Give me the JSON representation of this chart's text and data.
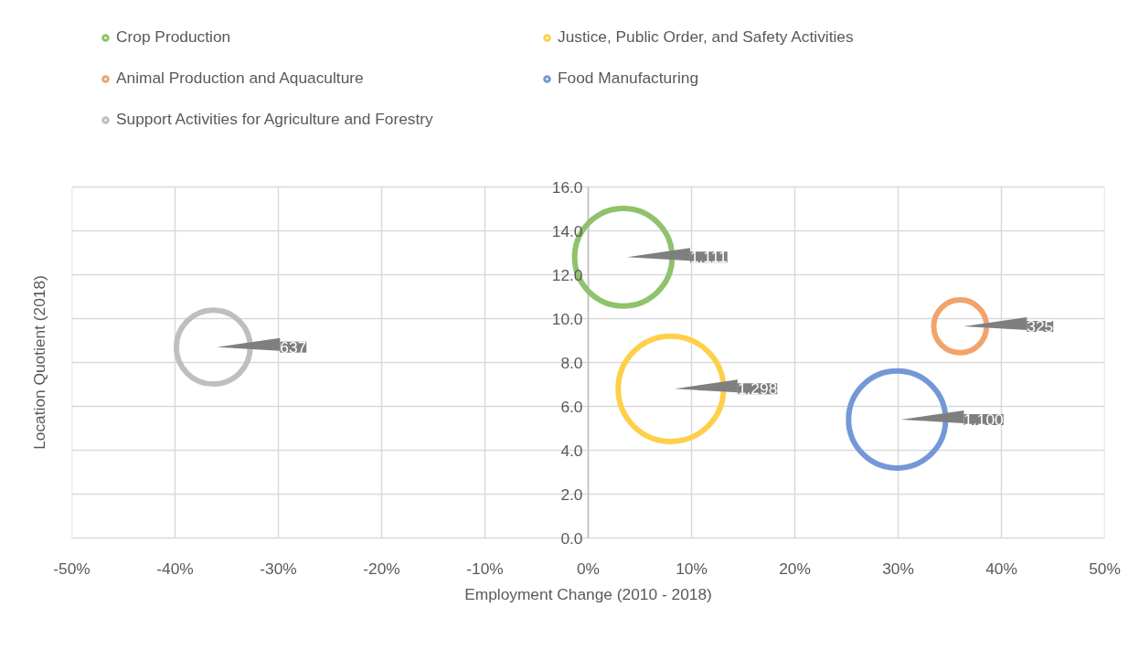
{
  "chart_data": {
    "type": "bubble",
    "xlabel": "Employment Change (2010 - 2018)",
    "ylabel": "Location Quotient (2018)",
    "xlim": [
      -50,
      50
    ],
    "xticks": [
      {
        "value": -50,
        "label": "-50%"
      },
      {
        "value": -40,
        "label": "-40%"
      },
      {
        "value": -30,
        "label": "-30%"
      },
      {
        "value": -20,
        "label": "-20%"
      },
      {
        "value": -10,
        "label": "-10%"
      },
      {
        "value": 0,
        "label": "0%"
      },
      {
        "value": 10,
        "label": "10%"
      },
      {
        "value": 20,
        "label": "20%"
      },
      {
        "value": 30,
        "label": "30%"
      },
      {
        "value": 40,
        "label": "40%"
      },
      {
        "value": 50,
        "label": "50%"
      }
    ],
    "ylim": [
      0,
      16
    ],
    "yticks": [
      {
        "value": 0,
        "label": "0.0"
      },
      {
        "value": 2,
        "label": "2.0"
      },
      {
        "value": 4,
        "label": "4.0"
      },
      {
        "value": 6,
        "label": "6.0"
      },
      {
        "value": 8,
        "label": "8.0"
      },
      {
        "value": 10,
        "label": "10.0"
      },
      {
        "value": 12,
        "label": "12.0"
      },
      {
        "value": 14,
        "label": "14.0"
      },
      {
        "value": 16,
        "label": "16.0"
      }
    ],
    "grid": true,
    "legend": "top",
    "marker": "circle",
    "series": [
      {
        "name": "Crop Production",
        "color": "#8fc26c",
        "x": [
          3.4
        ],
        "values": [
          12.8
        ],
        "sizes": [
          1111
        ],
        "value_labels": [
          "1,111"
        ]
      },
      {
        "name": "Animal Production and Aquaculture",
        "color": "#f0a46c",
        "x": [
          36.0
        ],
        "values": [
          9.65
        ],
        "sizes": [
          325
        ],
        "value_labels": [
          "325"
        ]
      },
      {
        "name": "Support Activities for Agriculture and Forestry",
        "color": "#bfbfbf",
        "x": [
          -36.3
        ],
        "values": [
          8.7
        ],
        "sizes": [
          637
        ],
        "value_labels": [
          "637"
        ]
      },
      {
        "name": "Justice, Public Order, and Safety Activities",
        "color": "#fed04a",
        "x": [
          8.0
        ],
        "values": [
          6.8
        ],
        "sizes": [
          1298
        ],
        "value_labels": [
          "1,298"
        ]
      },
      {
        "name": "Food Manufacturing",
        "color": "#7498d6",
        "x": [
          29.9
        ],
        "values": [
          5.4
        ],
        "sizes": [
          1100
        ],
        "value_labels": [
          "1,100"
        ]
      }
    ]
  }
}
